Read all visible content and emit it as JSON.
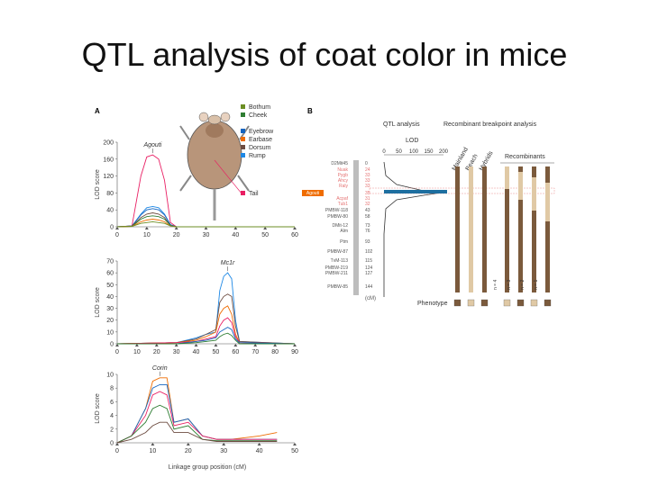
{
  "slide": {
    "title": "QTL analysis of coat color in mice"
  },
  "panel_a": {
    "label": "A",
    "legend": [
      "Bothum",
      "Cheek",
      "Eyebrow",
      "Earbase",
      "Dorsum",
      "Rump",
      "Tail"
    ],
    "legend_colors": [
      "#6b8e23",
      "#2e7d32",
      "#1565c0",
      "#ef6c00",
      "#6d4c41",
      "#1e88e5",
      "#e91e63"
    ],
    "ylabel": "LOD score",
    "xlabel": "Linkage group position (cM)",
    "chart1": {
      "annotation": "Agouti",
      "yticks": [
        "0",
        "40",
        "80",
        "120",
        "160",
        "200"
      ],
      "xticks": [
        "0",
        "10",
        "20",
        "30",
        "40",
        "50",
        "60"
      ]
    },
    "chart2": {
      "annotation": "Mc1r",
      "yticks": [
        "0",
        "10",
        "20",
        "30",
        "40",
        "50",
        "60",
        "70"
      ],
      "xticks": [
        "0",
        "10",
        "20",
        "30",
        "40",
        "50",
        "60",
        "70",
        "80",
        "90"
      ]
    },
    "chart3": {
      "annotation": "Corin",
      "yticks": [
        "0",
        "2",
        "4",
        "6",
        "8",
        "10"
      ],
      "xticks": [
        "0",
        "10",
        "20",
        "30",
        "40",
        "50"
      ]
    }
  },
  "panel_b": {
    "label": "B",
    "qtl_header": "QTL analysis",
    "recomb_header": "Recombinant breakpoint analysis",
    "lod_label": "LOD",
    "lod_ticks": [
      "0",
      "50",
      "100",
      "150",
      "200"
    ],
    "col_labels": [
      "Mainland",
      "Beach",
      "Hybrids"
    ],
    "recombinants_label": "Recombinants",
    "markers": [
      "D2Mit45",
      "Nuak",
      "Pygb",
      "Ahcy",
      "Raly",
      "Agouti",
      "Acpaf",
      "Tub1",
      "PMBW-118",
      "PMBW-80",
      "DMit-12",
      "Alm",
      "Ptm",
      "PMBW-87",
      "TvM-113",
      "PMBW-219",
      "PMBW-211",
      "PMBW-85"
    ],
    "positions": [
      "0",
      "24",
      "33",
      "33",
      "33",
      "35",
      "31",
      "32",
      "43",
      "58",
      "73",
      "76",
      "93",
      "102",
      "115",
      "124",
      "127",
      "144"
    ],
    "cm_label": "(cM)",
    "phenotype_label": "Phenotype",
    "recombinant_ids": [
      "n = 4",
      "n = 3",
      "n = 2",
      "n = 1"
    ]
  },
  "chart_data": [
    {
      "type": "line",
      "title": "",
      "annotation": "Agouti",
      "xlabel": "",
      "ylabel": "LOD score",
      "xlim": [
        0,
        60
      ],
      "ylim": [
        0,
        200
      ],
      "x": [
        0,
        5,
        8,
        10,
        12,
        14,
        16,
        18,
        20,
        60
      ],
      "series": [
        {
          "name": "Tail",
          "values": [
            0,
            2,
            120,
            165,
            170,
            160,
            110,
            10,
            0,
            0
          ]
        },
        {
          "name": "Rump",
          "values": [
            0,
            2,
            30,
            45,
            48,
            45,
            30,
            5,
            0,
            0
          ]
        },
        {
          "name": "Eyebrow",
          "values": [
            0,
            2,
            28,
            40,
            43,
            40,
            28,
            5,
            0,
            0
          ]
        },
        {
          "name": "Dorsum",
          "values": [
            0,
            2,
            22,
            30,
            33,
            30,
            22,
            3,
            0,
            0
          ]
        },
        {
          "name": "Cheek",
          "values": [
            0,
            1,
            18,
            24,
            26,
            24,
            18,
            3,
            0,
            0
          ]
        },
        {
          "name": "Earbase",
          "values": [
            0,
            1,
            12,
            16,
            18,
            16,
            12,
            2,
            0,
            0
          ]
        },
        {
          "name": "Bothum",
          "values": [
            0,
            1,
            8,
            10,
            12,
            10,
            8,
            2,
            0,
            0
          ]
        }
      ]
    },
    {
      "type": "line",
      "title": "",
      "annotation": "Mc1r",
      "xlabel": "",
      "ylabel": "LOD score",
      "xlim": [
        0,
        90
      ],
      "ylim": [
        0,
        70
      ],
      "x": [
        0,
        30,
        40,
        45,
        50,
        52,
        54,
        56,
        58,
        60,
        62,
        90
      ],
      "series": [
        {
          "name": "Rump",
          "values": [
            0,
            1,
            5,
            8,
            10,
            45,
            57,
            60,
            55,
            20,
            2,
            0
          ]
        },
        {
          "name": "Dorsum",
          "values": [
            0,
            1,
            4,
            8,
            12,
            35,
            40,
            42,
            40,
            15,
            2,
            0
          ]
        },
        {
          "name": "Earbase",
          "values": [
            0,
            1,
            3,
            6,
            10,
            25,
            30,
            32,
            25,
            8,
            1,
            0
          ]
        },
        {
          "name": "Tail",
          "values": [
            0,
            1,
            2,
            4,
            6,
            15,
            20,
            22,
            18,
            6,
            1,
            0
          ]
        },
        {
          "name": "Eyebrow",
          "values": [
            0,
            0,
            2,
            3,
            5,
            10,
            12,
            14,
            12,
            4,
            1,
            0
          ]
        },
        {
          "name": "Cheek",
          "values": [
            0,
            0,
            1,
            2,
            3,
            6,
            8,
            9,
            7,
            3,
            0,
            0
          ]
        }
      ]
    },
    {
      "type": "line",
      "title": "",
      "annotation": "Corin",
      "xlabel": "Linkage group position (cM)",
      "ylabel": "LOD score",
      "xlim": [
        0,
        50
      ],
      "ylim": [
        0,
        10
      ],
      "x": [
        0,
        4,
        8,
        10,
        12,
        14,
        16,
        20,
        24,
        28,
        32,
        40,
        45
      ],
      "series": [
        {
          "name": "Earbase",
          "values": [
            0,
            1,
            5,
            9,
            9.5,
            9.5,
            3,
            3.5,
            1,
            0.5,
            0.5,
            1,
            1.5
          ]
        },
        {
          "name": "Eyebrow",
          "values": [
            0,
            1,
            5,
            8,
            8.5,
            8.5,
            3,
            3.5,
            1,
            0.5,
            0.5,
            0.5,
            0.5
          ]
        },
        {
          "name": "Tail",
          "values": [
            0,
            1,
            4,
            7,
            7.5,
            7,
            2.5,
            3,
            1,
            0.5,
            0.5,
            0.5,
            0.5
          ]
        },
        {
          "name": "Cheek",
          "values": [
            0,
            1,
            3,
            5,
            5.5,
            5,
            2,
            2.5,
            0.5,
            0.3,
            0.3,
            0.3,
            0.3
          ]
        },
        {
          "name": "Dorsum",
          "values": [
            0,
            0.5,
            1.5,
            2.5,
            3,
            3,
            1.5,
            1.5,
            0.5,
            0.2,
            0.2,
            0.2,
            0.2
          ]
        }
      ]
    }
  ]
}
